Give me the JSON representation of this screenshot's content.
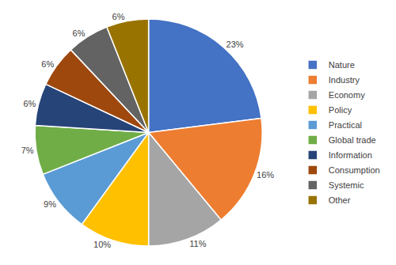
{
  "chart_data": {
    "type": "pie",
    "categories": [
      "Nature",
      "Industry",
      "Economy",
      "Policy",
      "Practical",
      "Global trade",
      "Information",
      "Consumption",
      "Systemic",
      "Other"
    ],
    "values": [
      23,
      16,
      11,
      10,
      9,
      7,
      6,
      6,
      6,
      6
    ],
    "value_labels": [
      "23%",
      "16%",
      "11%",
      "10%",
      "9%",
      "7%",
      "6%",
      "6%",
      "6%",
      "6%"
    ],
    "colors": [
      "#4472c4",
      "#ed7d31",
      "#a5a5a5",
      "#ffc000",
      "#5b9bd5",
      "#70ad47",
      "#264478",
      "#9e480e",
      "#636363",
      "#997300"
    ],
    "legend": "right",
    "data_labels": true
  }
}
